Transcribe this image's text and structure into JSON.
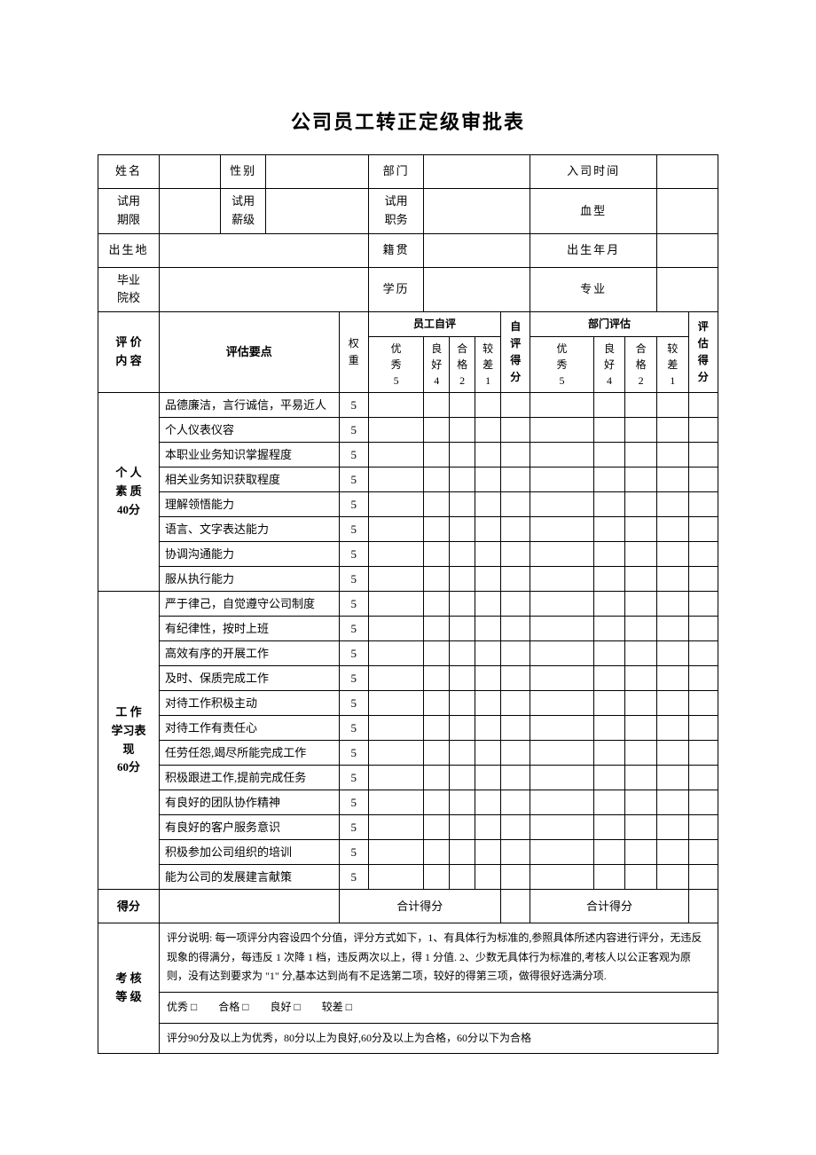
{
  "title": "公司员工转正定级审批表",
  "info": {
    "name_label": "姓名",
    "gender_label": "性别",
    "dept_label": "部门",
    "join_label": "入司时间",
    "trial_period_label": "试用\n期限",
    "trial_level_label": "试用\n薪级",
    "trial_duty_label": "试用\n职务",
    "blood_label": "血型",
    "birthplace_label": "出生地",
    "origin_label": "籍贯",
    "birthdate_label": "出生年月",
    "school_label": "毕业\n院校",
    "edu_label": "学历",
    "major_label": "专业"
  },
  "eval_headers": {
    "content_label": "评 价\n内 容",
    "criteria_label": "评估要点",
    "weight_label": "权\n重",
    "self_label": "员工自评",
    "self_score_label": "自\n评\n得\n分",
    "dept_label": "部门评估",
    "dept_score_label": "评\n估\n得\n分",
    "excellent": "优\n秀\n5",
    "good": "良\n好\n4",
    "pass": "合\n格\n2",
    "poor": "较\n差\n1"
  },
  "sections": [
    {
      "title": "个 人\n素 质\n40分",
      "rows": [
        {
          "text": "品德廉洁，言行诚信，平易近人",
          "weight": "5"
        },
        {
          "text": "个人仪表仪容",
          "weight": "5"
        },
        {
          "text": "本职业业务知识掌握程度",
          "weight": "5"
        },
        {
          "text": "相关业务知识获取程度",
          "weight": "5"
        },
        {
          "text": "理解领悟能力",
          "weight": "5"
        },
        {
          "text": "语言、文字表达能力",
          "weight": "5"
        },
        {
          "text": "协调沟通能力",
          "weight": "5"
        },
        {
          "text": "服从执行能力",
          "weight": "5"
        }
      ]
    },
    {
      "title": "工 作\n学习表\n现\n60分",
      "rows": [
        {
          "text": "严于律己，自觉遵守公司制度",
          "weight": "5"
        },
        {
          "text": "有纪律性，按时上班",
          "weight": "5"
        },
        {
          "text": "高效有序的开展工作",
          "weight": "5"
        },
        {
          "text": "及时、保质完成工作",
          "weight": "5"
        },
        {
          "text": "对待工作积极主动",
          "weight": "5"
        },
        {
          "text": "对待工作有责任心",
          "weight": "5"
        },
        {
          "text": "任劳任怨,竭尽所能完成工作",
          "weight": "5"
        },
        {
          "text": "积极跟进工作,提前完成任务",
          "weight": "5"
        },
        {
          "text": "有良好的团队协作精神",
          "weight": "5"
        },
        {
          "text": "有良好的客户服务意识",
          "weight": "5"
        },
        {
          "text": "积极参加公司组织的培训",
          "weight": "5"
        },
        {
          "text": "能为公司的发展建言献策",
          "weight": "5"
        }
      ]
    }
  ],
  "total": {
    "score_label": "得分",
    "subtotal_label": "合计得分"
  },
  "grade": {
    "label": "考 核\n等 级",
    "desc": "评分说明: 每一项评分内容设四个分值，评分方式如下，1、有具体行为标准的,参照具体所述内容进行评分，无违反现象的得满分，每违反 1 次降 1 档，违反两次以上，得 1 分值. 2、少数无具体行为标准的,考核人以公正客观为原则，没有达到要求为 \"1\" 分,基本达到尚有不足选第二项，较好的得第三项，做得很好选满分项.",
    "options": "优秀 □　　合格 □　　良好 □　　较差 □",
    "rule": "评分90分及以上为优秀，80分以上为良好,60分及以上为合格，60分以下为合格"
  }
}
